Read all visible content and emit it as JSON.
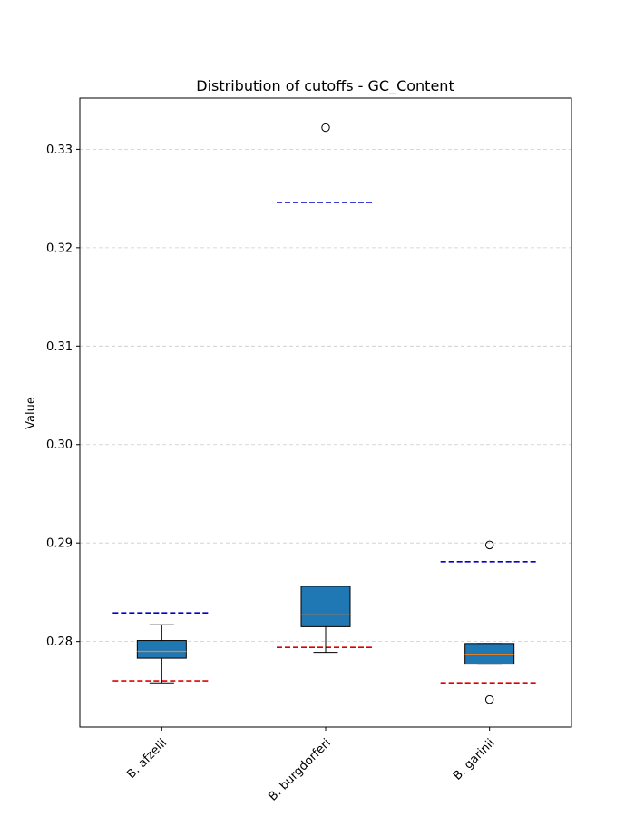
{
  "chart_data": {
    "type": "box",
    "title": "Distribution of cutoffs - GC_Content",
    "xlabel": "",
    "ylabel": "Value",
    "ylim": [
      0.2713,
      0.3352
    ],
    "yticks": [
      0.28,
      0.29,
      0.3,
      0.31,
      0.32,
      0.33
    ],
    "ytick_labels": [
      "0.28",
      "0.29",
      "0.30",
      "0.31",
      "0.32",
      "0.33"
    ],
    "grid": "y-dashed",
    "categories": [
      "B. afzelii",
      "B. burgdorferi",
      "B. garinii"
    ],
    "boxes": [
      {
        "whisker_low": 0.2758,
        "q1": 0.2783,
        "median": 0.279,
        "q3": 0.2801,
        "whisker_high": 0.2817,
        "outliers": []
      },
      {
        "whisker_low": 0.2789,
        "q1": 0.2815,
        "median": 0.2827,
        "q3": 0.2856,
        "whisker_high": 0.2856,
        "outliers": [
          0.3322
        ]
      },
      {
        "whisker_low": 0.2777,
        "q1": 0.2777,
        "median": 0.2787,
        "q3": 0.2798,
        "whisker_high": 0.2798,
        "outliers": [
          0.2898,
          0.2741
        ]
      }
    ],
    "reference_lines": [
      {
        "color": "#0000cc",
        "values": [
          0.2829,
          0.3246,
          0.2881
        ]
      },
      {
        "color": "#dd0000",
        "values": [
          0.276,
          0.2794,
          0.2758
        ]
      }
    ],
    "colors": {
      "box_fill": "#1f77b4",
      "median": "#ff7f0e",
      "grid": "#cccccc"
    }
  }
}
